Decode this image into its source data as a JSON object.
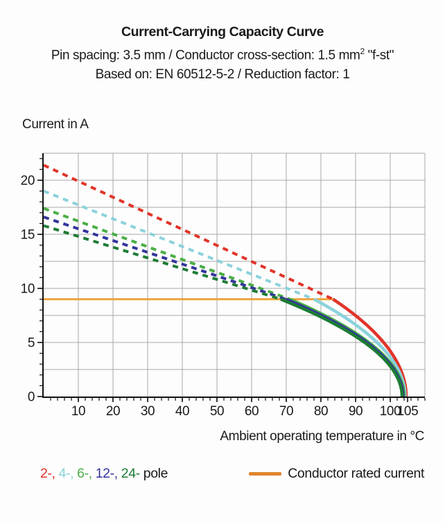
{
  "header": {
    "title": "Current-Carrying Capacity Curve",
    "subtitle_pre": "Pin spacing: 3.5 mm / Conductor cross-section: 1.5 mm",
    "subtitle_sup": "2",
    "subtitle_post": " \"f-st\"",
    "basis": "Based on: EN 60512-5-2 / Reduction factor: 1"
  },
  "chart": {
    "y_axis_title": "Current in A",
    "x_axis_title": "Ambient operating temperature in °C"
  },
  "legend": {
    "pole_items": [
      {
        "label": "2-,",
        "color": "#dc3328"
      },
      {
        "label": "4-,",
        "color": "#8bd2db"
      },
      {
        "label": "6-,",
        "color": "#4aae46"
      },
      {
        "label": "12-,",
        "color": "#34349c"
      },
      {
        "label": "24-",
        "color": "#1d7c34"
      }
    ],
    "pole_suffix": " pole",
    "rated_label": "Conductor rated current",
    "rated_swatch_color": "#e0862e"
  },
  "chart_data": {
    "type": "line",
    "title": "Current-Carrying Capacity Curve",
    "xlabel": "Ambient operating temperature in °C",
    "ylabel": "Current in A",
    "xlim": [
      0,
      110
    ],
    "ylim": [
      0,
      22.5
    ],
    "x_major_ticks": [
      10,
      20,
      30,
      40,
      50,
      60,
      70,
      80,
      90,
      100,
      105
    ],
    "x_minor_step": 2,
    "y_major_ticks": [
      0,
      5,
      10,
      15,
      20
    ],
    "y_minor_step": 1,
    "x_grid_step": 10,
    "y_grid_step": 2.5,
    "grid": true,
    "grid_color": "#a8a8a8",
    "axis_color": "#111111",
    "rated_current_line": {
      "value": 9,
      "x_start": 0,
      "x_end": 84,
      "color": "#eda43f"
    },
    "series": [
      {
        "name": "2-pole",
        "color": "#e1342a",
        "start_current_A": 21.4,
        "knee_temp_C": 83.5,
        "zero_current_temp_C": 104.6
      },
      {
        "name": "4-pole",
        "color": "#8bd2db",
        "start_current_A": 19.0,
        "knee_temp_C": 78.0,
        "zero_current_temp_C": 104.3
      },
      {
        "name": "6-pole",
        "color": "#4aae46",
        "start_current_A": 17.4,
        "knee_temp_C": 71.0,
        "zero_current_temp_C": 104.0
      },
      {
        "name": "12-pole",
        "color": "#34349c",
        "start_current_A": 16.6,
        "knee_temp_C": 69.8,
        "zero_current_temp_C": 103.7
      },
      {
        "name": "24-pole",
        "color": "#1d7c34",
        "start_current_A": 15.8,
        "knee_temp_C": 68.4,
        "zero_current_temp_C": 103.4
      }
    ]
  }
}
